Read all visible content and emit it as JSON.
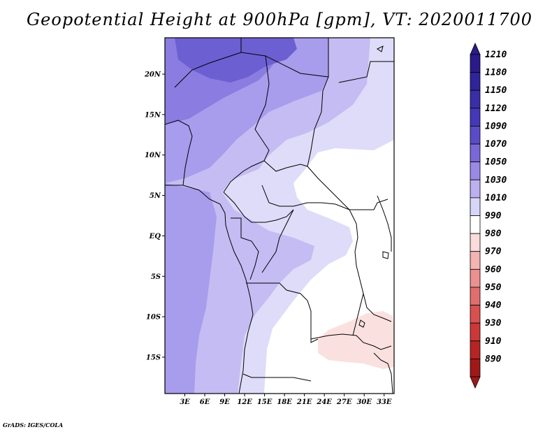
{
  "title": "Geopotential Height at 900hPa [gpm], VT: 2020011700",
  "credit": "GrADS: IGES/COLA",
  "map": {
    "lon_range": [
      0,
      34.5
    ],
    "lat_range": [
      -19.5,
      24.5
    ],
    "lat_ticks": [
      {
        "value": 20,
        "label": "20N"
      },
      {
        "value": 15,
        "label": "15N"
      },
      {
        "value": 10,
        "label": "10N"
      },
      {
        "value": 5,
        "label": "5N"
      },
      {
        "value": 0,
        "label": "EQ"
      },
      {
        "value": -5,
        "label": "5S"
      },
      {
        "value": -10,
        "label": "10S"
      },
      {
        "value": -15,
        "label": "15S"
      }
    ],
    "lon_ticks": [
      {
        "value": 3,
        "label": "3E"
      },
      {
        "value": 6,
        "label": "6E"
      },
      {
        "value": 9,
        "label": "9E"
      },
      {
        "value": 12,
        "label": "12E"
      },
      {
        "value": 15,
        "label": "15E"
      },
      {
        "value": 18,
        "label": "18E"
      },
      {
        "value": 21,
        "label": "21E"
      },
      {
        "value": 24,
        "label": "24E"
      },
      {
        "value": 27,
        "label": "27E"
      },
      {
        "value": 30,
        "label": "30E"
      },
      {
        "value": 33,
        "label": "33E"
      }
    ]
  },
  "colorbar": {
    "levels": [
      "1210",
      "1180",
      "1150",
      "1120",
      "1090",
      "1070",
      "1050",
      "1030",
      "1010",
      "990",
      "980",
      "970",
      "960",
      "950",
      "940",
      "930",
      "910",
      "890"
    ],
    "colors": [
      "#2a1a8a",
      "#2f2499",
      "#3a2ea8",
      "#4538b8",
      "#5a4cc8",
      "#7a68d8",
      "#9a8ae6",
      "#bcb0f0",
      "#d8d6f8",
      "#ffffff",
      "#fadcdc",
      "#f4b4b4",
      "#ec9090",
      "#e06e6e",
      "#d85050",
      "#cc3838",
      "#b82424",
      "#a01818"
    ]
  },
  "field_colors": {
    "c1090": "#6c5fd2",
    "c1070": "#8a7ce0",
    "c1050": "#a89ced",
    "c1030": "#c4bcf3",
    "c1010": "#dedcf9",
    "c990": "#ffffff",
    "c980": "#fbe0e0"
  }
}
